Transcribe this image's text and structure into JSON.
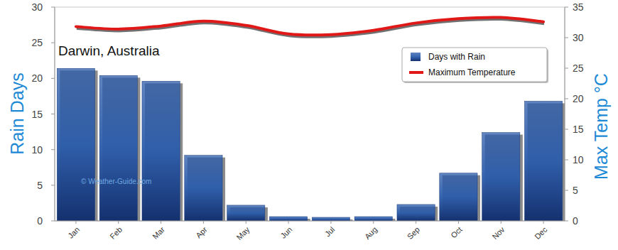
{
  "chart_data": {
    "type": "bar",
    "title": "Darwin, Australia",
    "ylabel": "Rain Days",
    "y2label": "Max Temp °C",
    "annotations": [
      "© Weather-Guide.com"
    ],
    "categories": [
      "Jan",
      "Feb",
      "Mar",
      "Apr",
      "May",
      "Jun",
      "Jul",
      "Aug",
      "Sep",
      "Oct",
      "Nov",
      "Dec"
    ],
    "series": [
      {
        "name": "Days with Rain",
        "type": "bar",
        "color": "#2b5cab",
        "values": [
          21.4,
          20.4,
          19.6,
          9.2,
          2.2,
          0.6,
          0.5,
          0.6,
          2.3,
          6.7,
          12.4,
          16.8
        ]
      },
      {
        "name": "Maximum Temperature",
        "type": "line",
        "color": "#e01818",
        "axis": "y2",
        "values": [
          31.8,
          31.4,
          31.9,
          32.7,
          32.0,
          30.6,
          30.5,
          31.2,
          32.4,
          33.1,
          33.3,
          32.6
        ]
      }
    ],
    "ylim": [
      0,
      30
    ],
    "yticks": [
      0,
      5,
      10,
      15,
      20,
      25,
      30
    ],
    "y2lim": [
      0,
      35
    ],
    "y2ticks": [
      0,
      5,
      10,
      15,
      20,
      25,
      30,
      35
    ],
    "grid": false,
    "legend": "top-right"
  }
}
